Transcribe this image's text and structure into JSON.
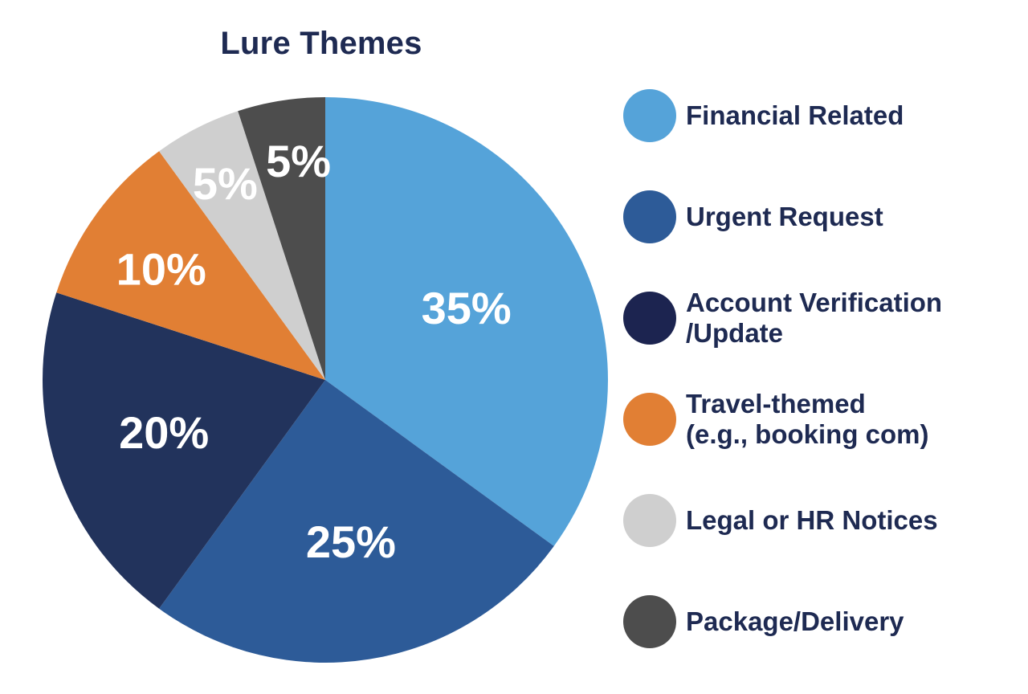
{
  "chart_data": {
    "type": "pie",
    "title": "Lure Themes",
    "slices": [
      {
        "label": "Financial Related",
        "value": 35,
        "display": "35%",
        "color": "#55a3d9"
      },
      {
        "label": "Urgent Request",
        "value": 25,
        "display": "25%",
        "color": "#2d5b98"
      },
      {
        "label": "Account Verification\n/Update",
        "value": 20,
        "display": "20%",
        "color": "#22335c"
      },
      {
        "label": "Travel-themed\n(e.g., booking com)",
        "value": 10,
        "display": "10%",
        "color": "#e17f34"
      },
      {
        "label": "Legal or HR Notices",
        "value": 5,
        "display": "5%",
        "color": "#cfcfcf"
      },
      {
        "label": "Package/Delivery",
        "value": 5,
        "display": "5%",
        "color": "#4d4d4d"
      }
    ],
    "legend_position": "right"
  },
  "legend_swatch_colors": {
    "Financial Related": "#55a3d9",
    "Urgent Request": "#2d5b98",
    "Account Verification": "#1c2450",
    "Travel-themed": "#e17f34",
    "Legal or HR Notices": "#cfcfcf",
    "Package/Delivery": "#4d4d4d"
  }
}
